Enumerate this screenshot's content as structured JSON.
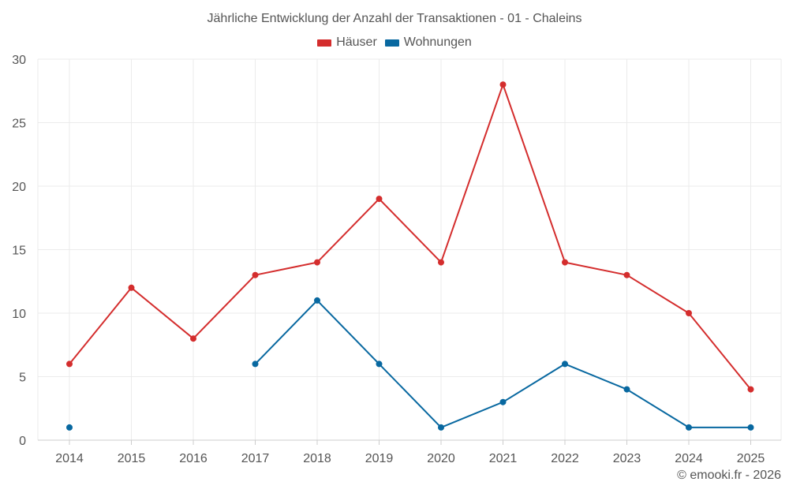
{
  "chart_data": {
    "type": "line",
    "title": "Jährliche Entwicklung der Anzahl der Transaktionen - 01 - Chaleins",
    "categories": [
      "2014",
      "2015",
      "2016",
      "2017",
      "2018",
      "2019",
      "2020",
      "2021",
      "2022",
      "2023",
      "2024",
      "2025"
    ],
    "series": [
      {
        "name": "Häuser",
        "color": "#d42d2d",
        "values": [
          6,
          12,
          8,
          13,
          14,
          19,
          14,
          28,
          14,
          13,
          10,
          4
        ]
      },
      {
        "name": "Wohnungen",
        "color": "#0868a0",
        "values": [
          1,
          null,
          null,
          6,
          11,
          6,
          1,
          3,
          6,
          4,
          1,
          1
        ]
      }
    ],
    "ylim": [
      0,
      30
    ],
    "yticks": [
      0,
      5,
      10,
      15,
      20,
      25,
      30
    ],
    "grid": true,
    "legend": "top-center",
    "xlabel": "",
    "ylabel": ""
  },
  "credit": "© emooki.fr - 2026"
}
